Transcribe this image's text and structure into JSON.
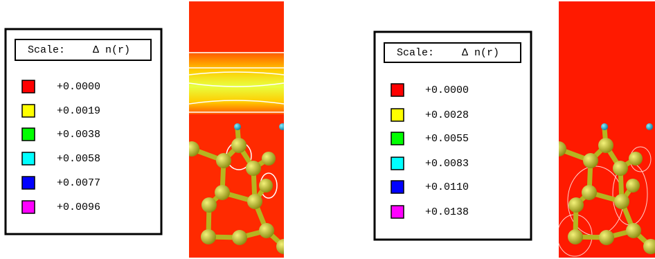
{
  "panels": [
    {
      "legend": {
        "title": "Scale:",
        "quantity": "Δ n(r)",
        "entries": [
          {
            "color": "#ff0000",
            "label": "+0.0000"
          },
          {
            "color": "#ffff00",
            "label": "+0.0019"
          },
          {
            "color": "#00ff00",
            "label": "+0.0038"
          },
          {
            "color": "#00ffff",
            "label": "+0.0058"
          },
          {
            "color": "#0000ff",
            "label": "+0.0077"
          },
          {
            "color": "#ff00ff",
            "label": "+0.0096"
          }
        ]
      }
    },
    {
      "legend": {
        "title": "Scale:",
        "quantity": "Δ n(r)",
        "entries": [
          {
            "color": "#ff0000",
            "label": "+0.0000"
          },
          {
            "color": "#ffff00",
            "label": "+0.0028"
          },
          {
            "color": "#00ff00",
            "label": "+0.0055"
          },
          {
            "color": "#00ffff",
            "label": "+0.0083"
          },
          {
            "color": "#0000ff",
            "label": "+0.0110"
          },
          {
            "color": "#ff00ff",
            "label": "+0.0138"
          }
        ]
      }
    }
  ]
}
